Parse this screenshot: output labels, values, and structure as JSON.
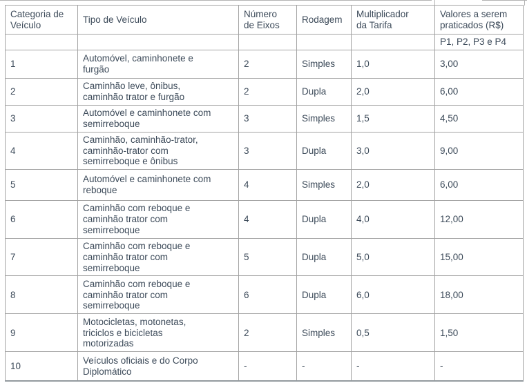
{
  "colors": {
    "text": "#3c4a59",
    "border": "#a2a2a2",
    "bottom_border": "#939a9e",
    "background": "#ffffff"
  },
  "table": {
    "columns": [
      {
        "key": "categoria",
        "label": "Categoria de\nVeículo"
      },
      {
        "key": "tipo",
        "label": "Tipo de Veículo"
      },
      {
        "key": "eixos",
        "label": "Número\nde Eixos"
      },
      {
        "key": "rodagem",
        "label": "Rodagem"
      },
      {
        "key": "multiplicador",
        "label": "Multiplicador\nda Tarifa"
      },
      {
        "key": "valores",
        "label": "Valores a serem\npraticados (R$)"
      }
    ],
    "subheader_label": "P1, P2, P3 e P4",
    "rows": [
      [
        "1",
        "Automóvel, caminhonete e\nfurgão",
        "2",
        "Simples",
        "1,0",
        "3,00"
      ],
      [
        "2",
        "Caminhão leve, ônibus,\ncaminhão trator e furgão",
        "2",
        "Dupla",
        "2,0",
        "6,00"
      ],
      [
        "3",
        "Automóvel e caminhonete com\nsemirreboque",
        "3",
        "Simples",
        "1,5",
        "4,50"
      ],
      [
        "4",
        "Caminhão, caminhão-trator,\ncaminhão-trator com\nsemirreboque e ônibus",
        "3",
        "Dupla",
        "3,0",
        "9,00"
      ],
      [
        "5",
        "Automóvel e caminhonete com\nreboque",
        "4",
        "Simples",
        "2,0",
        "6,00"
      ],
      [
        "6",
        "Caminhão com reboque e\ncaminhão trator com\nsemirreboque",
        "4",
        "Dupla",
        "4,0",
        "12,00"
      ],
      [
        "7",
        "Caminhão com reboque e\ncaminhão trator com\nsemirreboque",
        "5",
        "Dupla",
        "5,0",
        "15,00"
      ],
      [
        "8",
        "Caminhão com reboque e\ncaminhão trator com\nsemirreboque",
        "6",
        "Dupla",
        "6,0",
        "18,00"
      ],
      [
        "9",
        "Motocicletas, motonetas,\ntriciclos e bicicletas\nmotorizadas",
        "2",
        "Simples",
        "0,5",
        "1,50"
      ],
      [
        "10",
        "Veículos oficiais e do Corpo\nDiplomático",
        "-",
        "-",
        "-",
        "-"
      ]
    ]
  }
}
